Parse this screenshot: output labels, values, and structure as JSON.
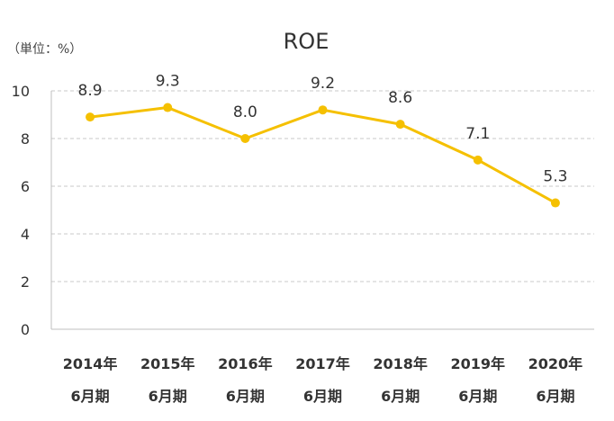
{
  "chart_data": {
    "type": "line",
    "title": "ROE",
    "unit_label": "（単位：%）",
    "categories": [
      [
        "2014年",
        "6月期"
      ],
      [
        "2015年",
        "6月期"
      ],
      [
        "2016年",
        "6月期"
      ],
      [
        "2017年",
        "6月期"
      ],
      [
        "2018年",
        "6月期"
      ],
      [
        "2019年",
        "6月期"
      ],
      [
        "2020年",
        "6月期"
      ]
    ],
    "series": [
      {
        "values": [
          8.9,
          9.3,
          8.0,
          9.2,
          8.6,
          7.1,
          5.3
        ],
        "data_labels": [
          "8.9",
          "9.3",
          "8.0",
          "9.2",
          "8.6",
          "7.1",
          "5.3"
        ],
        "color": "#F5C000"
      }
    ],
    "ylim": [
      0,
      10
    ],
    "yticks": [
      0,
      2,
      4,
      6,
      8,
      10
    ],
    "grid": true,
    "legend": "none"
  }
}
